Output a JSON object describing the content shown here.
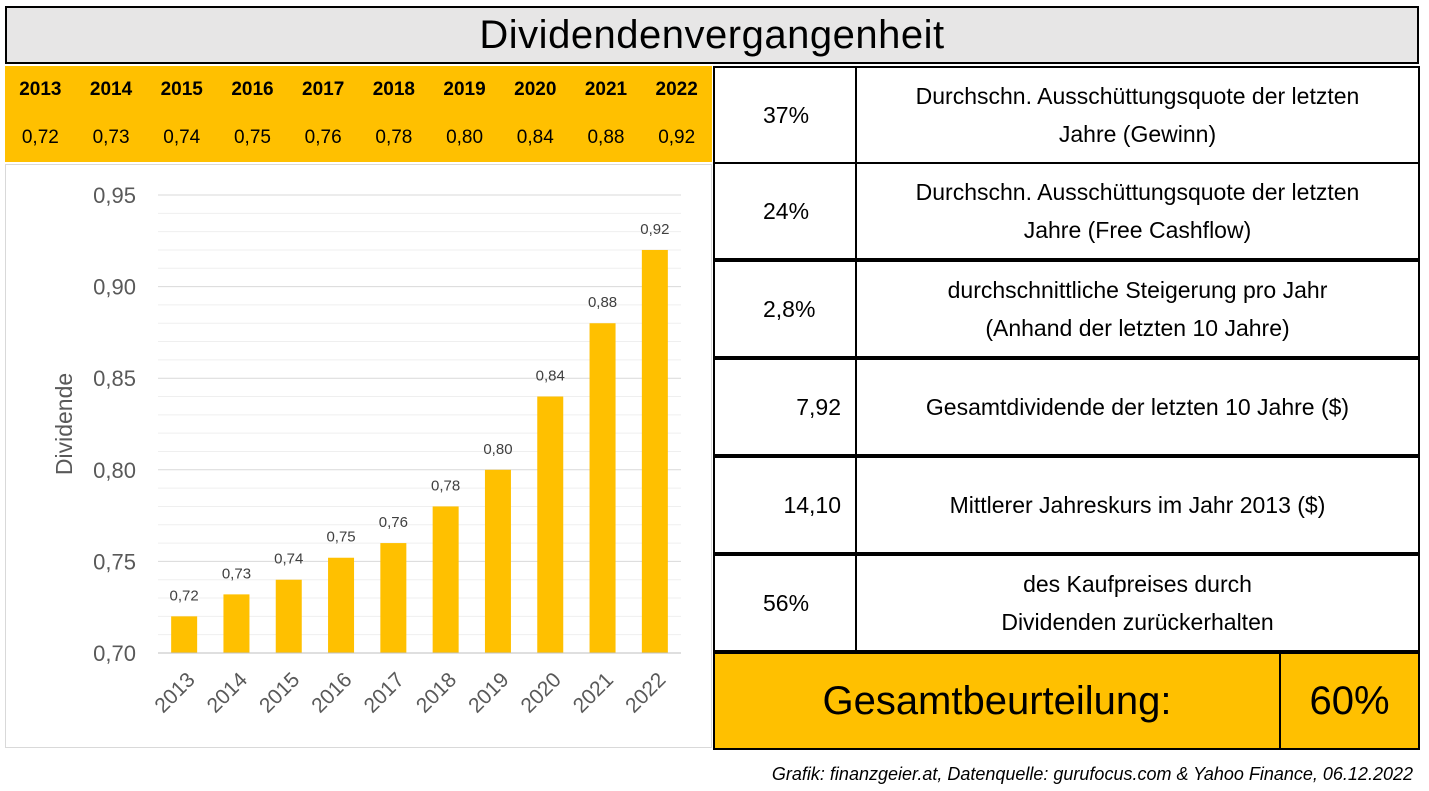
{
  "title": "Dividendenvergangenheit",
  "years_table": {
    "years": [
      "2013",
      "2014",
      "2015",
      "2016",
      "2017",
      "2018",
      "2019",
      "2020",
      "2021",
      "2022"
    ],
    "values": [
      "0,72",
      "0,73",
      "0,74",
      "0,75",
      "0,76",
      "0,78",
      "0,80",
      "0,84",
      "0,88",
      "0,92"
    ]
  },
  "chart_data": {
    "type": "bar",
    "categories": [
      "2013",
      "2014",
      "2015",
      "2016",
      "2017",
      "2018",
      "2019",
      "2020",
      "2021",
      "2022"
    ],
    "values": [
      0.72,
      0.732,
      0.74,
      0.752,
      0.76,
      0.78,
      0.8,
      0.84,
      0.88,
      0.92
    ],
    "data_labels": [
      "0,72",
      "0,73",
      "0,74",
      "0,75",
      "0,76",
      "0,78",
      "0,80",
      "0,84",
      "0,88",
      "0,92"
    ],
    "ylabel": "Dividende",
    "ylim": [
      0.7,
      0.95
    ],
    "yticks": [
      0.7,
      0.75,
      0.8,
      0.85,
      0.9,
      0.95
    ],
    "ytick_labels": [
      "0,70",
      "0,75",
      "0,80",
      "0,85",
      "0,90",
      "0,95"
    ],
    "grid": true,
    "bar_color": "#ffc000"
  },
  "stats": [
    {
      "value": "37%",
      "label_lines": [
        "Durchschn. Ausschüttungsquote der letzten",
        "Jahre (Gewinn)"
      ]
    },
    {
      "value": "24%",
      "label_lines": [
        "Durchschn. Ausschüttungsquote der letzten",
        "Jahre (Free Cashflow)"
      ]
    },
    {
      "value": "2,8%",
      "label_lines": [
        "durchschnittliche Steigerung pro Jahr",
        "(Anhand der letzten 10 Jahre)"
      ]
    },
    {
      "value": "7,92",
      "label_lines": [
        "Gesamtdividende der letzten 10 Jahre ($)"
      ]
    },
    {
      "value": "14,10",
      "label_lines": [
        "Mittlerer Jahreskurs im Jahr 2013 ($)"
      ]
    },
    {
      "value": "56%",
      "label_lines": [
        "des Kaufpreises durch",
        "Dividenden zurückerhalten"
      ]
    }
  ],
  "total": {
    "label": "Gesamtbeurteilung:",
    "value": "60%"
  },
  "source": "Grafik: finanzgeier.at, Datenquelle: gurufocus.com & Yahoo Finance, 06.12.2022",
  "colors": {
    "accent": "#ffc000",
    "title_bg": "#e7e6e6"
  }
}
